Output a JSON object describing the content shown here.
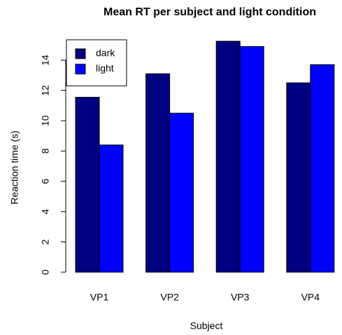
{
  "chart_data": {
    "type": "bar",
    "title": "Mean RT per subject and light condition",
    "x_label": "Subject",
    "y_label": "Reaction time (s)",
    "categories": [
      "VP1",
      "VP2",
      "VP3",
      "VP4"
    ],
    "series": [
      {
        "name": "dark",
        "color": "#000080",
        "values": [
          11.55,
          13.1,
          15.25,
          12.5
        ]
      },
      {
        "name": "light",
        "color": "#0000ff",
        "values": [
          8.4,
          10.5,
          14.9,
          13.7
        ]
      }
    ],
    "ylim": [
      0,
      15.5
    ],
    "yticks": [
      0,
      2,
      4,
      6,
      8,
      10,
      12,
      14
    ],
    "legend": "top-left"
  }
}
